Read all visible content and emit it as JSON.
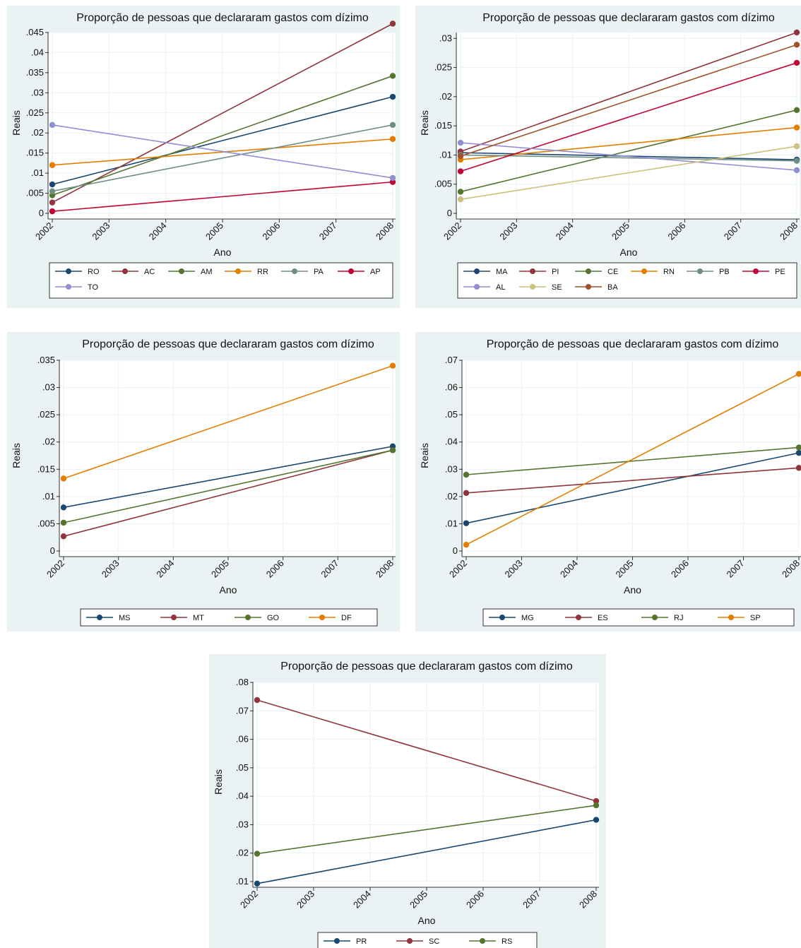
{
  "chart_data": [
    {
      "type": "line",
      "title": "Proporção de pessoas que declararam gastos com dízimo",
      "xlabel": "Ano",
      "ylabel": "Reais",
      "x": [
        2002,
        2008
      ],
      "xticks": [
        "2002",
        "2003",
        "2004",
        "2005",
        "2006",
        "2007",
        "2008"
      ],
      "ylim": [
        0,
        0.045
      ],
      "yticks": [
        0,
        0.005,
        0.01,
        0.015,
        0.02,
        0.025,
        0.03,
        0.035,
        0.04,
        0.045
      ],
      "ytick_labels": [
        "0",
        ".005",
        ".01",
        ".015",
        ".02",
        ".025",
        ".03",
        ".035",
        ".04",
        ".045"
      ],
      "grid": true,
      "legend_position": "bottom",
      "series": [
        {
          "name": "RO",
          "values": [
            0.0072,
            0.029
          ],
          "color": "#1a476f"
        },
        {
          "name": "AC",
          "values": [
            0.0027,
            0.0472
          ],
          "color": "#90353b"
        },
        {
          "name": "AM",
          "values": [
            0.0045,
            0.0342
          ],
          "color": "#55752f"
        },
        {
          "name": "RR",
          "values": [
            0.012,
            0.0185
          ],
          "color": "#e37e00"
        },
        {
          "name": "PA",
          "values": [
            0.0055,
            0.022
          ],
          "color": "#6e8e84"
        },
        {
          "name": "AP",
          "values": [
            0.0005,
            0.0078
          ],
          "color": "#c10534"
        },
        {
          "name": "TO",
          "values": [
            0.022,
            0.0088
          ],
          "color": "#938dd2"
        }
      ]
    },
    {
      "type": "line",
      "title": "Proporção de pessoas que declararam gastos com dízimo",
      "xlabel": "Ano",
      "ylabel": "Reais",
      "x": [
        2002,
        2008
      ],
      "xticks": [
        "2002",
        "2003",
        "2004",
        "2005",
        "2006",
        "2007",
        "2008"
      ],
      "ylim": [
        0,
        0.031
      ],
      "yticks": [
        0,
        0.005,
        0.01,
        0.015,
        0.02,
        0.025,
        0.03
      ],
      "ytick_labels": [
        "0",
        ".005",
        ".01",
        ".015",
        ".02",
        ".025",
        ".03"
      ],
      "grid": true,
      "legend_position": "bottom",
      "series": [
        {
          "name": "MA",
          "values": [
            0.0104,
            0.0092
          ],
          "color": "#1a476f"
        },
        {
          "name": "PI",
          "values": [
            0.0106,
            0.031
          ],
          "color": "#90353b"
        },
        {
          "name": "CE",
          "values": [
            0.0037,
            0.0177
          ],
          "color": "#55752f"
        },
        {
          "name": "RN",
          "values": [
            0.0092,
            0.0147
          ],
          "color": "#e37e00"
        },
        {
          "name": "PB",
          "values": [
            0.01,
            0.009
          ],
          "color": "#6e8e84"
        },
        {
          "name": "PE",
          "values": [
            0.0072,
            0.0258
          ],
          "color": "#c10534"
        },
        {
          "name": "AL",
          "values": [
            0.0121,
            0.0074
          ],
          "color": "#938dd2"
        },
        {
          "name": "SE",
          "values": [
            0.0024,
            0.0115
          ],
          "color": "#cac27e"
        },
        {
          "name": "BA",
          "values": [
            0.0098,
            0.0289
          ],
          "color": "#a0522d"
        }
      ]
    },
    {
      "type": "line",
      "title": "Proporção de pessoas que declararam gastos com dízimo",
      "xlabel": "Ano",
      "ylabel": "Reais",
      "x": [
        2002,
        2008
      ],
      "xticks": [
        "2002",
        "2003",
        "2004",
        "2005",
        "2006",
        "2007",
        "2008"
      ],
      "ylim": [
        0,
        0.035
      ],
      "yticks": [
        0,
        0.005,
        0.01,
        0.015,
        0.02,
        0.025,
        0.03,
        0.035
      ],
      "ytick_labels": [
        "0",
        ".005",
        ".01",
        ".015",
        ".02",
        ".025",
        ".03",
        ".035"
      ],
      "grid": true,
      "legend_position": "bottom",
      "series": [
        {
          "name": "MS",
          "values": [
            0.008,
            0.0192
          ],
          "color": "#1a476f"
        },
        {
          "name": "MT",
          "values": [
            0.0027,
            0.0185
          ],
          "color": "#90353b"
        },
        {
          "name": "GO",
          "values": [
            0.0052,
            0.0185
          ],
          "color": "#55752f"
        },
        {
          "name": "DF",
          "values": [
            0.0133,
            0.034
          ],
          "color": "#e37e00"
        }
      ]
    },
    {
      "type": "line",
      "title": "Proporção de pessoas que declararam gastos com dízimo",
      "xlabel": "Ano",
      "ylabel": "Reais",
      "x": [
        2002,
        2008
      ],
      "xticks": [
        "2002",
        "2003",
        "2004",
        "2005",
        "2006",
        "2007",
        "2008"
      ],
      "ylim": [
        0,
        0.07
      ],
      "yticks": [
        0,
        0.01,
        0.02,
        0.03,
        0.04,
        0.05,
        0.06,
        0.07
      ],
      "ytick_labels": [
        "0",
        ".01",
        ".02",
        ".03",
        ".04",
        ".05",
        ".06",
        ".07"
      ],
      "grid": true,
      "legend_position": "bottom",
      "series": [
        {
          "name": "MG",
          "values": [
            0.0102,
            0.036
          ],
          "color": "#1a476f"
        },
        {
          "name": "ES",
          "values": [
            0.0213,
            0.0305
          ],
          "color": "#90353b"
        },
        {
          "name": "RJ",
          "values": [
            0.028,
            0.038
          ],
          "color": "#55752f"
        },
        {
          "name": "SP",
          "values": [
            0.0023,
            0.065
          ],
          "color": "#e37e00"
        }
      ]
    },
    {
      "type": "line",
      "title": "Proporção de pessoas que declararam gastos com dízimo",
      "xlabel": "Ano",
      "ylabel": "Reais",
      "x": [
        2002,
        2008
      ],
      "xticks": [
        "2002",
        "2003",
        "2004",
        "2005",
        "2006",
        "2007",
        "2008"
      ],
      "ylim": [
        0.01,
        0.08
      ],
      "yticks": [
        0.01,
        0.02,
        0.03,
        0.04,
        0.05,
        0.06,
        0.07,
        0.08
      ],
      "ytick_labels": [
        ".01",
        ".02",
        ".03",
        ".04",
        ".05",
        ".06",
        ".07",
        ".08"
      ],
      "grid": true,
      "legend_position": "bottom",
      "series": [
        {
          "name": "PR",
          "values": [
            0.0093,
            0.0317
          ],
          "color": "#1a476f"
        },
        {
          "name": "SC",
          "values": [
            0.0738,
            0.0383
          ],
          "color": "#90353b"
        },
        {
          "name": "RS",
          "values": [
            0.0198,
            0.0368
          ],
          "color": "#55752f"
        }
      ]
    }
  ]
}
